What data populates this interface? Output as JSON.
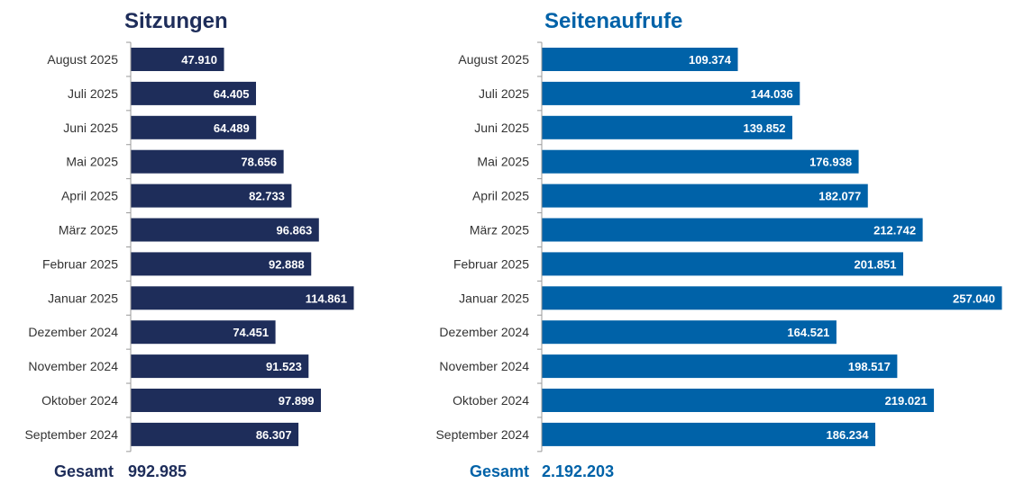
{
  "colors": {
    "sessions": "#1e2d5a",
    "pageviews": "#0062a8",
    "axis": "#999999"
  },
  "chart_data": [
    {
      "type": "bar",
      "orientation": "horizontal",
      "title": "Sitzungen",
      "categories": [
        "August 2025",
        "Juli 2025",
        "Juni 2025",
        "Mai 2025",
        "April 2025",
        "März 2025",
        "Februar 2025",
        "Januar 2025",
        "Dezember 2024",
        "November 2024",
        "Oktober 2024",
        "September 2024"
      ],
      "values": [
        47910,
        64405,
        64489,
        78656,
        82733,
        96863,
        92888,
        114861,
        74451,
        91523,
        97899,
        86307
      ],
      "value_labels": [
        "47.910",
        "64.405",
        "64.489",
        "78.656",
        "82.733",
        "96.863",
        "92.888",
        "114.861",
        "74.451",
        "91.523",
        "97.899",
        "86.307"
      ],
      "total_label": "Gesamt",
      "total_value": "992.985"
    },
    {
      "type": "bar",
      "orientation": "horizontal",
      "title": "Seitenaufrufe",
      "categories": [
        "August 2025",
        "Juli 2025",
        "Juni 2025",
        "Mai 2025",
        "April 2025",
        "März 2025",
        "Februar 2025",
        "Januar 2025",
        "Dezember 2024",
        "November 2024",
        "Oktober 2024",
        "September 2024"
      ],
      "values": [
        109374,
        144036,
        139852,
        176938,
        182077,
        212742,
        201851,
        257040,
        164521,
        198517,
        219021,
        186234
      ],
      "value_labels": [
        "109.374",
        "144.036",
        "139.852",
        "176.938",
        "182.077",
        "212.742",
        "201.851",
        "257.040",
        "164.521",
        "198.517",
        "219.021",
        "186.234"
      ],
      "total_label": "Gesamt",
      "total_value": "2.192.203"
    }
  ]
}
